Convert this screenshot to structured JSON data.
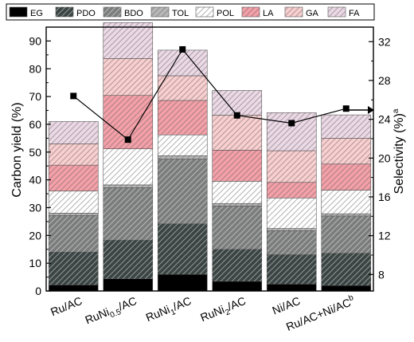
{
  "chart_data": {
    "type": "bar",
    "stacked": true,
    "categories": [
      {
        "main": "Ru/AC",
        "sub": "",
        "tail": "",
        "sup": ""
      },
      {
        "main": "RuNi",
        "sub": "0.5",
        "tail": "/AC",
        "sup": ""
      },
      {
        "main": "RuNi",
        "sub": "1",
        "tail": "/AC",
        "sup": ""
      },
      {
        "main": "RuNi",
        "sub": "2",
        "tail": "/AC",
        "sup": ""
      },
      {
        "main": "Ni/AC",
        "sub": "",
        "tail": "",
        "sup": ""
      },
      {
        "main": "Ru/AC+Ni/AC",
        "sub": "",
        "tail": "",
        "sup": "b"
      }
    ],
    "series": [
      {
        "name": "EG",
        "color": "#000000",
        "pattern": "solid",
        "values": [
          2.2,
          4.4,
          6.0,
          3.5,
          2.5,
          2.0
        ]
      },
      {
        "name": "PDO",
        "color": "#3a4442",
        "pattern": "hatch",
        "values": [
          11.8,
          13.9,
          18.2,
          11.5,
          10.6,
          11.6
        ]
      },
      {
        "name": "BDO",
        "color": "#7b7d7c",
        "pattern": "hatch",
        "values": [
          13.2,
          18.9,
          23.3,
          15.6,
          8.6,
          13.4
        ]
      },
      {
        "name": "TOL",
        "color": "#b7b7b7",
        "pattern": "hatch",
        "values": [
          0.8,
          1.0,
          1.2,
          0.9,
          0.8,
          0.8
        ]
      },
      {
        "name": "POL",
        "color": "#ffffff",
        "pattern": "hatch",
        "values": [
          8.0,
          13.0,
          7.5,
          8.0,
          11.0,
          8.5
        ]
      },
      {
        "name": "LA",
        "color": "#f4a0a8",
        "pattern": "hatch",
        "values": [
          9.3,
          19.2,
          12.4,
          11.2,
          5.6,
          9.4
        ]
      },
      {
        "name": "GA",
        "color": "#f9cfd0",
        "pattern": "hatch",
        "values": [
          7.7,
          13.3,
          8.9,
          12.6,
          11.4,
          9.3
        ]
      },
      {
        "name": "FA",
        "color": "#ecd9e6",
        "pattern": "hatch",
        "values": [
          8.0,
          12.9,
          9.2,
          8.9,
          13.7,
          8.4
        ]
      }
    ],
    "selectivity": [
      26.4,
      21.9,
      31.2,
      24.4,
      23.6,
      25.1
    ],
    "ylabel": "Carbon yield (%)",
    "y2label": "Selectivity (%)",
    "y2label_sup": "a",
    "ylim": [
      0,
      95
    ],
    "y2lim": [
      6.3,
      33.5
    ],
    "yticks": [
      0,
      10,
      20,
      30,
      40,
      50,
      60,
      70,
      80,
      90
    ],
    "y2ticks": [
      8,
      12,
      16,
      20,
      24,
      28,
      32
    ],
    "legend_position": "top",
    "grid": false
  }
}
